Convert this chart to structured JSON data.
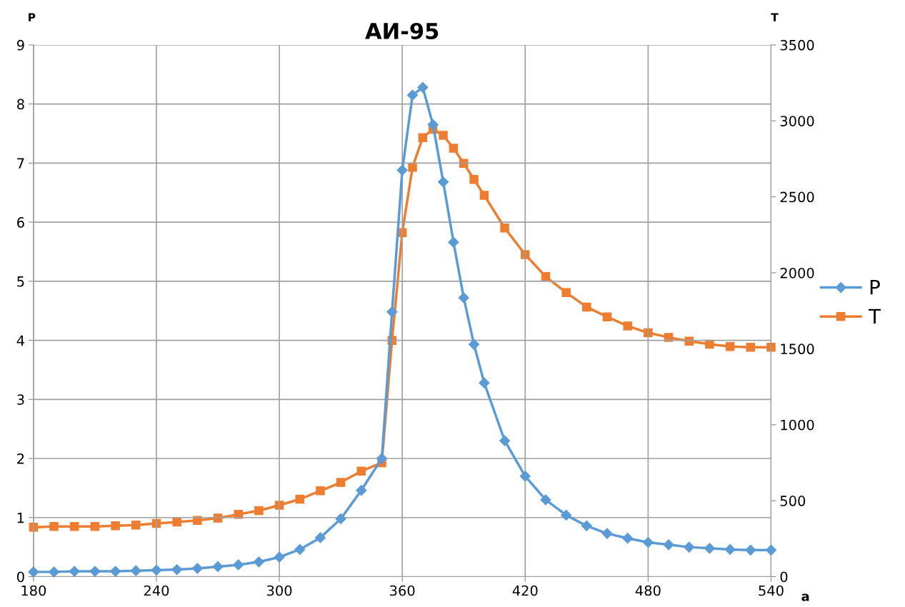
{
  "chart_data": {
    "type": "line",
    "title": "АИ-95",
    "ylabel": "P",
    "y2label": "T",
    "xlabel": "a",
    "x": [
      180,
      190,
      200,
      210,
      220,
      230,
      240,
      250,
      260,
      270,
      280,
      290,
      300,
      310,
      320,
      330,
      340,
      350,
      355,
      360,
      365,
      370,
      375,
      380,
      385,
      390,
      395,
      400,
      410,
      420,
      430,
      440,
      450,
      460,
      470,
      480,
      490,
      500,
      510,
      520,
      530,
      540
    ],
    "series": [
      {
        "name": "P",
        "color": "#5b9bd5",
        "marker": "diamond",
        "values": [
          0.08,
          0.08,
          0.09,
          0.09,
          0.09,
          0.1,
          0.11,
          0.12,
          0.14,
          0.17,
          0.2,
          0.25,
          0.33,
          0.46,
          0.66,
          0.98,
          1.46,
          2.0,
          4.48,
          6.88,
          8.15,
          8.28,
          7.65,
          6.68,
          5.66,
          4.72,
          3.93,
          3.28,
          2.3,
          1.7,
          1.3,
          1.04,
          0.86,
          0.73,
          0.65,
          0.58,
          0.54,
          0.5,
          0.48,
          0.46,
          0.45,
          0.45
        ]
      },
      {
        "name": "T",
        "color": "#ed7d31",
        "marker": "square",
        "axis": "y2",
        "values": [
          325,
          330,
          330,
          330,
          335,
          340,
          350,
          360,
          370,
          385,
          410,
          435,
          470,
          510,
          565,
          620,
          695,
          750,
          1555,
          2265,
          2695,
          2890,
          2945,
          2905,
          2820,
          2720,
          2615,
          2510,
          2295,
          2120,
          1975,
          1870,
          1775,
          1710,
          1650,
          1605,
          1575,
          1550,
          1530,
          1515,
          1510,
          1510
        ]
      }
    ],
    "xlim": [
      180,
      540
    ],
    "xticks": [
      180,
      240,
      300,
      360,
      420,
      480,
      540
    ],
    "ylim": [
      0,
      9
    ],
    "yticks": [
      0,
      1,
      2,
      3,
      4,
      5,
      6,
      7,
      8,
      9
    ],
    "y2lim": [
      0,
      3500
    ],
    "y2ticks": [
      0,
      500,
      1000,
      1500,
      2000,
      2500,
      3000,
      3500
    ],
    "grid": true,
    "legend": "right",
    "line_style": "solid"
  }
}
